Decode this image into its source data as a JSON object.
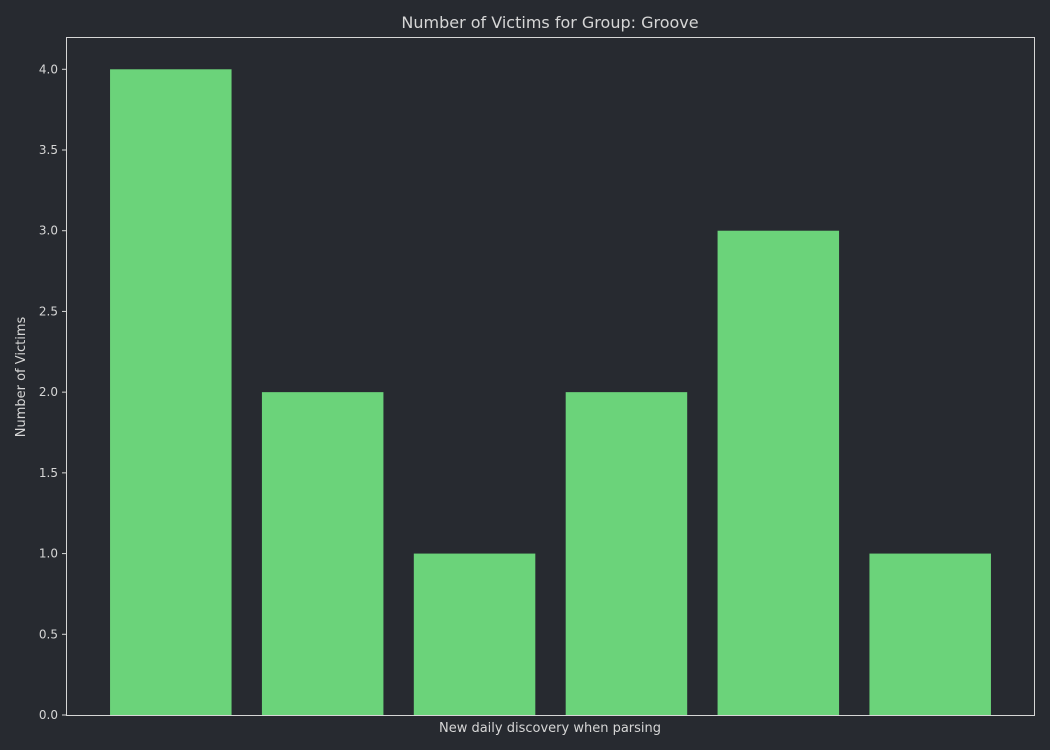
{
  "chart_data": {
    "type": "bar",
    "title": "Number of Victims for Group: Groove",
    "xlabel": "New daily discovery when parsing",
    "ylabel": "Number of Victims",
    "categories": [
      "",
      "",
      "",
      "",
      "",
      ""
    ],
    "values": [
      4,
      2,
      1,
      2,
      3,
      1
    ],
    "ylim": [
      0,
      4.2
    ],
    "yticks": [
      "0.0",
      "0.5",
      "1.0",
      "1.5",
      "2.0",
      "2.5",
      "3.0",
      "3.5",
      "4.0"
    ],
    "grid": false,
    "legend": "none",
    "colors": {
      "background": "#272a30",
      "bar": "#6bd37a",
      "text": "#d6d6d6",
      "frame": "#d6d6d6"
    }
  }
}
